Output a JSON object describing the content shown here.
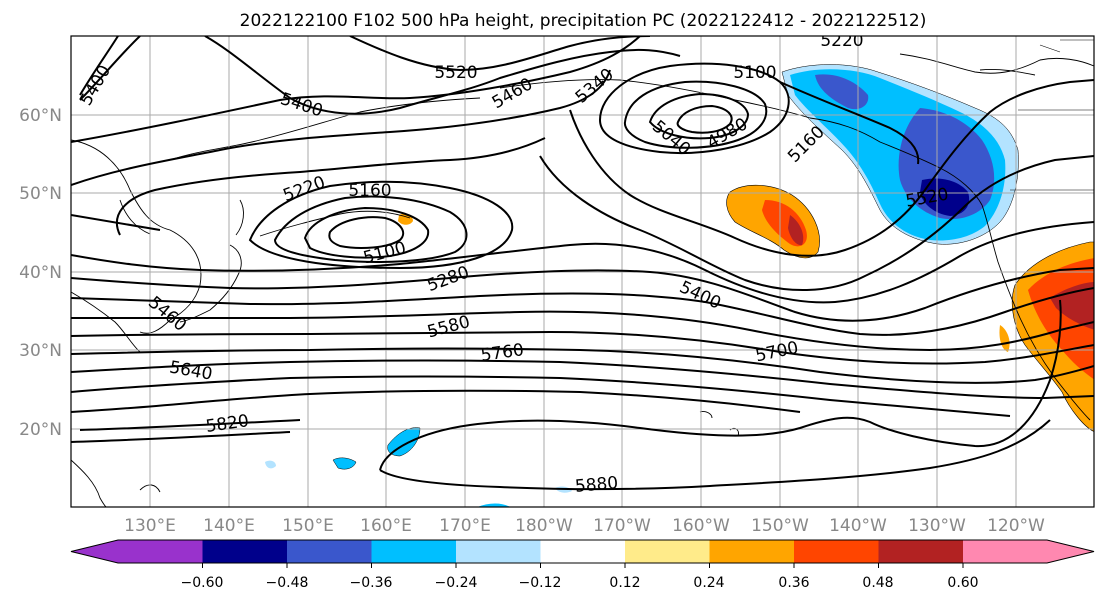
{
  "title": "2022122100 F102 500 hPa height, precipitation PC (2022122412 - 2022122512)",
  "lat_labels": [
    "60°N",
    "50°N",
    "40°N",
    "30°N",
    "20°N"
  ],
  "lon_labels": [
    "130°E",
    "140°E",
    "150°E",
    "160°E",
    "170°E",
    "180°W",
    "170°W",
    "160°W",
    "150°W",
    "140°W",
    "130°W",
    "120°W"
  ],
  "contour_labels": [
    "5400",
    "5520",
    "5460",
    "5340",
    "5220",
    "5100",
    "5400",
    "4980",
    "5040",
    "5160",
    "5220",
    "5160",
    "5100",
    "5280",
    "5400",
    "5460",
    "5580",
    "5760",
    "5700",
    "5640",
    "5820",
    "5880",
    "5520"
  ],
  "colorbar": {
    "colors": [
      "#9932CC",
      "#00008B",
      "#3A57CC",
      "#00BFFF",
      "#B3E3FF",
      "#FFFFFF",
      "#FFEB8A",
      "#FFA500",
      "#FF4500",
      "#B22222",
      "#FF88B0"
    ],
    "tick_labels": [
      "−0.60",
      "−0.48",
      "−0.36",
      "−0.24",
      "−0.12",
      "0.12",
      "0.24",
      "0.36",
      "0.48",
      "0.60"
    ]
  }
}
